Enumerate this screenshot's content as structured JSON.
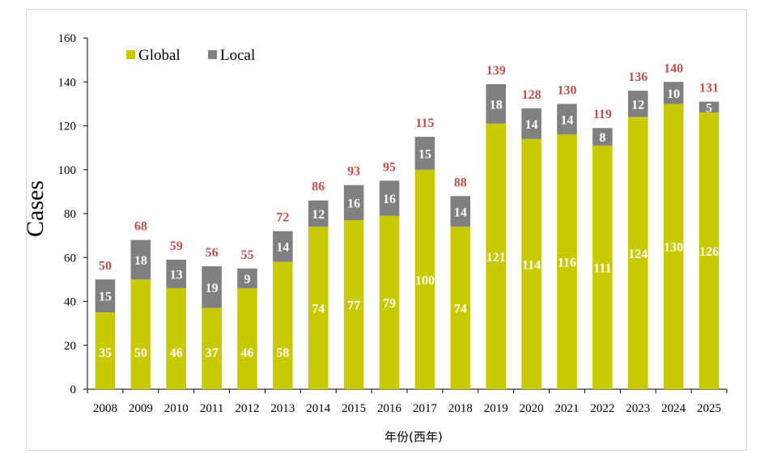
{
  "chart_data": {
    "type": "bar",
    "stacked": true,
    "categories": [
      "2008",
      "2009",
      "2010",
      "2011",
      "2012",
      "2013",
      "2014",
      "2015",
      "2016",
      "2017",
      "2018",
      "2019",
      "2020",
      "2021",
      "2022",
      "2023",
      "2024",
      "2025"
    ],
    "series": [
      {
        "name": "Global",
        "color": "#c9c900",
        "values": [
          35,
          50,
          46,
          37,
          46,
          58,
          74,
          77,
          79,
          100,
          74,
          121,
          114,
          116,
          111,
          124,
          130,
          126
        ]
      },
      {
        "name": "Local",
        "color": "#808080",
        "values": [
          15,
          18,
          13,
          19,
          9,
          14,
          12,
          16,
          16,
          15,
          14,
          18,
          14,
          14,
          8,
          12,
          10,
          5
        ]
      }
    ],
    "totals": [
      50,
      68,
      59,
      56,
      55,
      72,
      86,
      93,
      95,
      115,
      88,
      139,
      128,
      130,
      119,
      136,
      140,
      131
    ],
    "total_label_color": "#c0504d",
    "xlabel": "年份(西年)",
    "ylabel": "Cases",
    "ylim": [
      0,
      160
    ],
    "yticks": [
      0,
      20,
      40,
      60,
      80,
      100,
      120,
      140,
      160
    ],
    "legend_position": "top-left",
    "grid": false
  }
}
